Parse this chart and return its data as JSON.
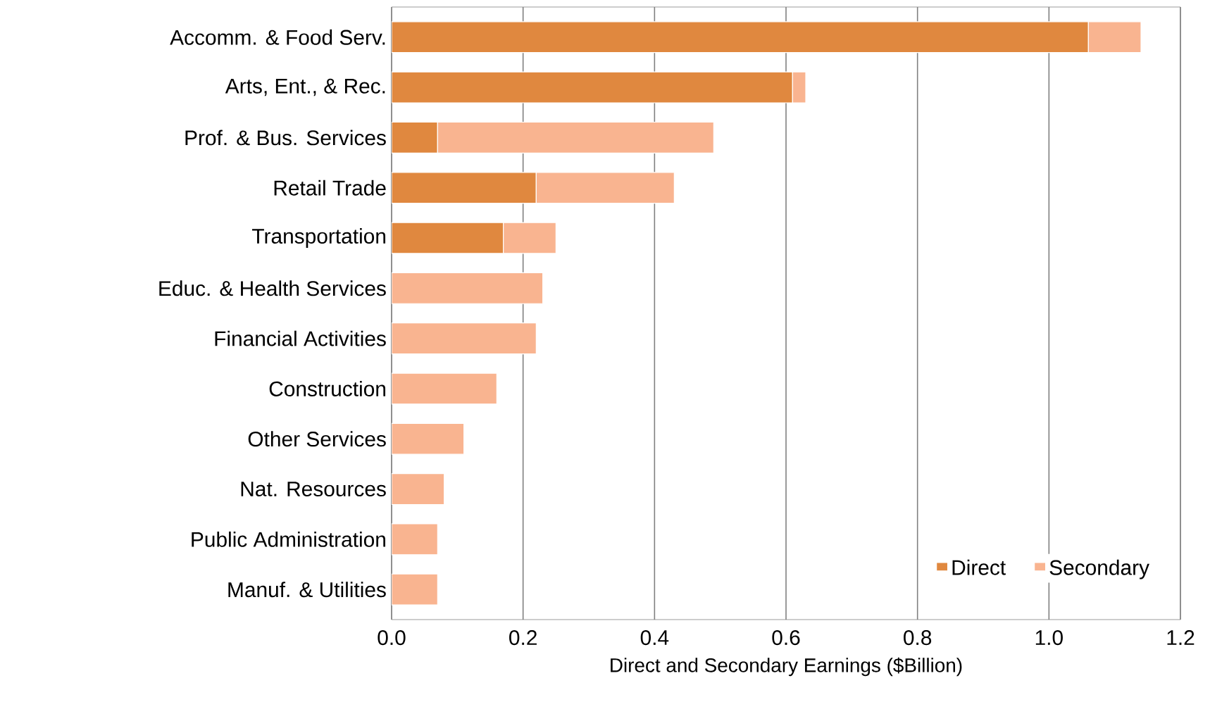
{
  "chart_data": {
    "type": "bar",
    "orientation": "horizontal",
    "stacked": true,
    "categories": [
      "Accomm. & Food Serv.",
      "Arts, Ent., & Rec.",
      "Prof. & Bus. Services",
      "Retail Trade",
      "Transportation",
      "Educ. & Health Services",
      "Financial Activities",
      "Construction",
      "Other Services",
      "Nat. Resources",
      "Public Administration",
      "Manuf. & Utilities"
    ],
    "series": [
      {
        "name": "Direct",
        "color": "#e0883f",
        "values": [
          1.06,
          0.61,
          0.07,
          0.22,
          0.17,
          0,
          0,
          0,
          0,
          0,
          0,
          0
        ]
      },
      {
        "name": "Secondary",
        "color": "#f9b490",
        "values": [
          0.08,
          0.02,
          0.42,
          0.21,
          0.08,
          0.23,
          0.22,
          0.16,
          0.11,
          0.08,
          0.07,
          0.07
        ]
      }
    ],
    "xlabel": "Direct and Secondary Earnings ($Billion)",
    "xlim": [
      0,
      1.2
    ],
    "xticks": [
      {
        "value": 0,
        "label": "0.0"
      },
      {
        "value": 0.2,
        "label": "0.2"
      },
      {
        "value": 0.4,
        "label": "0.4"
      },
      {
        "value": 0.6,
        "label": "0.6"
      },
      {
        "value": 0.8,
        "label": "0.8"
      },
      {
        "value": 1.0,
        "label": "1.0"
      },
      {
        "value": 1.2,
        "label": "1.2"
      }
    ],
    "grid": "x",
    "legend": "bottom right"
  }
}
